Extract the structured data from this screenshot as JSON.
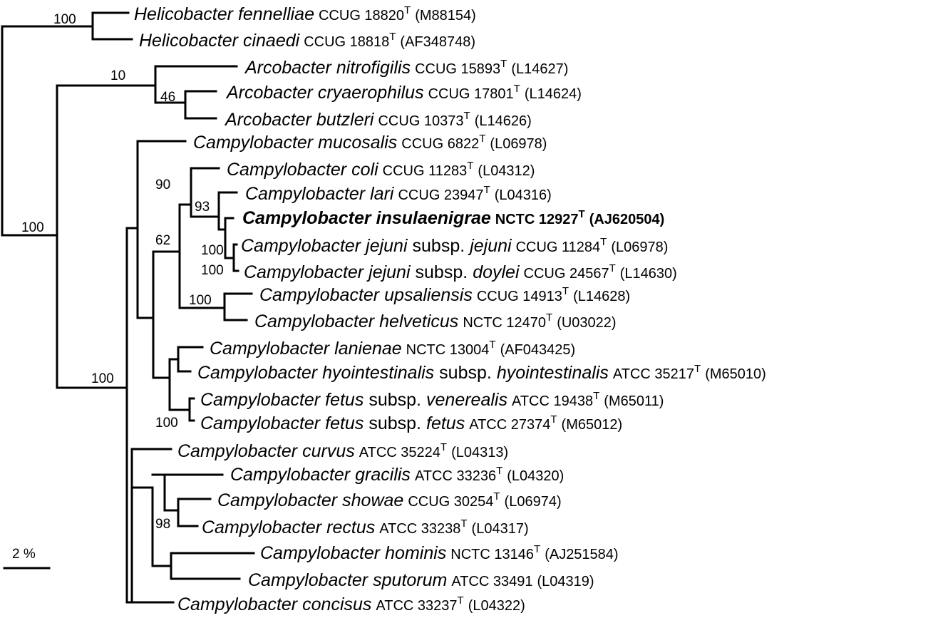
{
  "tree": {
    "leaves": [
      {
        "id": "hfen",
        "genus": "Helicobacter",
        "species": "fennelliae",
        "subsp_prefix": "",
        "subsp": "",
        "strain": "CCUG 18820",
        "sup": "T",
        "acc": "(M88154)",
        "bold": false
      },
      {
        "id": "hcin",
        "genus": "Helicobacter",
        "species": "cinaedi",
        "subsp_prefix": "",
        "subsp": "",
        "strain": "CCUG 18818",
        "sup": "T",
        "acc": "(AF348748)",
        "bold": false
      },
      {
        "id": "anit",
        "genus": "Arcobacter",
        "species": "nitrofigilis",
        "subsp_prefix": "",
        "subsp": "",
        "strain": "CCUG 15893",
        "sup": "T",
        "acc": "(L14627)",
        "bold": false
      },
      {
        "id": "acry",
        "genus": "Arcobacter",
        "species": "cryaerophilus",
        "subsp_prefix": "",
        "subsp": "",
        "strain": "CCUG 17801",
        "sup": "T",
        "acc": "(L14624)",
        "bold": false
      },
      {
        "id": "abut",
        "genus": "Arcobacter",
        "species": "butzleri",
        "subsp_prefix": "",
        "subsp": "",
        "strain": "CCUG 10373",
        "sup": "T",
        "acc": "(L14626)",
        "bold": false
      },
      {
        "id": "cmuc",
        "genus": "Campylobacter",
        "species": "mucosalis",
        "subsp_prefix": "",
        "subsp": "",
        "strain": "CCUG 6822",
        "sup": "T",
        "acc": "(L06978)",
        "bold": false
      },
      {
        "id": "ccol",
        "genus": "Campylobacter",
        "species": "coli",
        "subsp_prefix": "",
        "subsp": "",
        "strain": "CCUG 11283",
        "sup": "T",
        "acc": "(L04312)",
        "bold": false
      },
      {
        "id": "clar",
        "genus": "Campylobacter",
        "species": "lari",
        "subsp_prefix": "",
        "subsp": "",
        "strain": "CCUG 23947",
        "sup": "T",
        "acc": "(L04316)",
        "bold": false
      },
      {
        "id": "cins",
        "genus": "Campylobacter",
        "species": "insulaenigrae",
        "subsp_prefix": "",
        "subsp": "",
        "strain": "NCTC 12927",
        "sup": "T",
        "acc": "(AJ620504)",
        "bold": true
      },
      {
        "id": "cjej",
        "genus": "Campylobacter",
        "species": "jejuni",
        "subsp_prefix": "subsp.",
        "subsp": "jejuni",
        "strain": "CCUG 11284",
        "sup": "T",
        "acc": "(L06978)",
        "bold": false
      },
      {
        "id": "cdoy",
        "genus": "Campylobacter",
        "species": "jejuni",
        "subsp_prefix": "subsp.",
        "subsp": "doylei",
        "strain": "CCUG 24567",
        "sup": "T",
        "acc": "(L14630)",
        "bold": false
      },
      {
        "id": "cups",
        "genus": "Campylobacter",
        "species": "upsaliensis",
        "subsp_prefix": "",
        "subsp": "",
        "strain": "CCUG 14913",
        "sup": "T",
        "acc": "(L14628)",
        "bold": false
      },
      {
        "id": "chel",
        "genus": "Campylobacter",
        "species": "helveticus",
        "subsp_prefix": "",
        "subsp": "",
        "strain": "NCTC 12470",
        "sup": "T",
        "acc": "(U03022)",
        "bold": false
      },
      {
        "id": "clan",
        "genus": "Campylobacter",
        "species": "lanienae",
        "subsp_prefix": "",
        "subsp": "",
        "strain": "NCTC 13004",
        "sup": "T",
        "acc": "(AF043425)",
        "bold": false
      },
      {
        "id": "chyo",
        "genus": "Campylobacter",
        "species": "hyointestinalis",
        "subsp_prefix": "subsp.",
        "subsp": "hyointestinalis",
        "strain": "ATCC 35217",
        "sup": "T",
        "acc": "(M65010)",
        "bold": false
      },
      {
        "id": "cven",
        "genus": "Campylobacter",
        "species": "fetus",
        "subsp_prefix": "subsp.",
        "subsp": "venerealis",
        "strain": "ATCC 19438",
        "sup": "T",
        "acc": "(M65011)",
        "bold": false
      },
      {
        "id": "cfet",
        "genus": "Campylobacter",
        "species": "fetus",
        "subsp_prefix": "subsp.",
        "subsp": "fetus",
        "strain": "ATCC 27374",
        "sup": "T",
        "acc": "(M65012)",
        "bold": false
      },
      {
        "id": "ccur",
        "genus": "Campylobacter",
        "species": "curvus",
        "subsp_prefix": "",
        "subsp": "",
        "strain": "ATCC 35224",
        "sup": "T",
        "acc": "(L04313)",
        "bold": false
      },
      {
        "id": "cgra",
        "genus": "Campylobacter",
        "species": "gracilis",
        "subsp_prefix": "",
        "subsp": "",
        "strain": "ATCC 33236",
        "sup": "T",
        "acc": "(L04320)",
        "bold": false
      },
      {
        "id": "csho",
        "genus": "Campylobacter",
        "species": "showae",
        "subsp_prefix": "",
        "subsp": "",
        "strain": "CCUG 30254",
        "sup": "T",
        "acc": "(L06974)",
        "bold": false
      },
      {
        "id": "crec",
        "genus": "Campylobacter",
        "species": "rectus",
        "subsp_prefix": "",
        "subsp": "",
        "strain": "ATCC 33238",
        "sup": "T",
        "acc": "(L04317)",
        "bold": false
      },
      {
        "id": "chom",
        "genus": "Campylobacter",
        "species": "hominis",
        "subsp_prefix": "",
        "subsp": "",
        "strain": "NCTC 13146",
        "sup": "T",
        "acc": "(AJ251584)",
        "bold": false
      },
      {
        "id": "cspu",
        "genus": "Campylobacter",
        "species": "sputorum",
        "subsp_prefix": "",
        "subsp": "",
        "strain": "ATCC 33491",
        "sup": "",
        "acc": "(L04319)",
        "bold": false
      },
      {
        "id": "ccon",
        "genus": "Campylobacter",
        "species": "concisus",
        "subsp_prefix": "",
        "subsp": "",
        "strain": "ATCC 33237",
        "sup": "T",
        "acc": "(L04322)",
        "bold": false
      }
    ],
    "bootstrap_values": [
      "100",
      "100",
      "10",
      "46",
      "90",
      "93",
      "62",
      "100",
      "100",
      "100",
      "100",
      "98",
      "100"
    ],
    "scale_bar_label": "2 %"
  }
}
